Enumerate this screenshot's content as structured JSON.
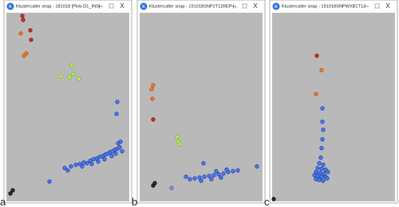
{
  "windows": [
    {
      "title": "Klustercaller snap - 181018 [Pinb-D1_INS]",
      "close": "X",
      "label": "a"
    },
    {
      "title": "Klustercaller snap - 191018SNP2T11REP [...",
      "close": "X",
      "label": "b"
    },
    {
      "title": "Klustercaller snap - 191018SNPWXB1T12",
      "close": "X",
      "label": "c"
    }
  ]
}
